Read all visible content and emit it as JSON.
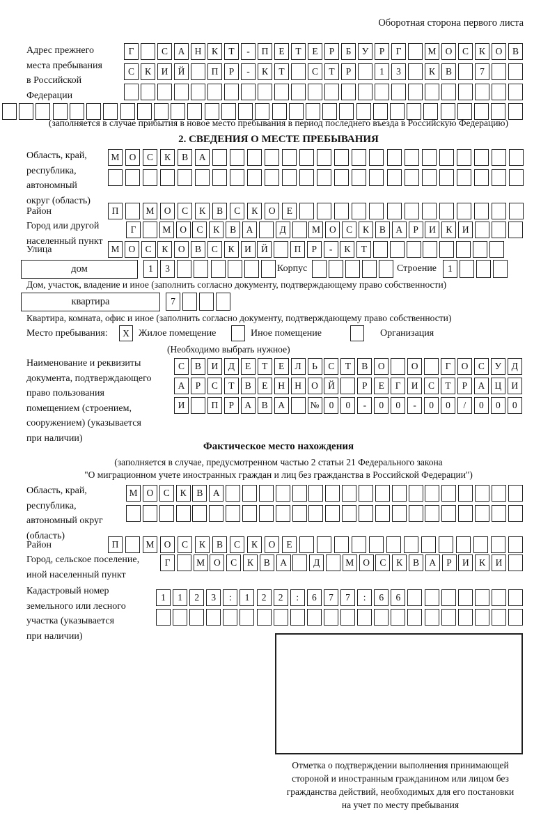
{
  "page": {
    "back_note": "Оборотная сторона первого листа"
  },
  "prev_address": {
    "label_lines": [
      "Адрес прежнего",
      "места пребывания",
      "в Российской",
      "Федерации"
    ],
    "rows": [
      {
        "chars": "Г САНКТ-ПЕТЕРБУРГ МОСКОВ",
        "count": 24
      },
      {
        "chars": "СКИЙ ПР-КТ СТР 13 КВ 7",
        "count": 24
      },
      {
        "chars": "",
        "count": 24
      },
      {
        "chars": "",
        "count": 31
      }
    ],
    "note": "(заполняется в случае прибытия в новое место пребывания в период последнего въезда в Российскую Федерацию)"
  },
  "section2": {
    "title": "2. СВЕДЕНИЯ О МЕСТЕ ПРЕБЫВАНИЯ",
    "region": {
      "label_lines": [
        "Область, край,",
        "республика,",
        "автономный",
        "округ (область)"
      ],
      "rows": [
        {
          "chars": "МОСКВА",
          "count": 24
        },
        {
          "chars": "",
          "count": 24
        }
      ]
    },
    "district": {
      "label": "Район",
      "row": {
        "chars": "П МОСКВСКОЕ",
        "count": 24
      }
    },
    "city": {
      "label_lines": [
        "Город или другой",
        "населенный пункт"
      ],
      "row": {
        "chars": "Г МОСКВА Д МОСКВАРИКИ",
        "count": 24
      }
    },
    "street": {
      "label": "Улица",
      "row": {
        "chars": "МОСКОВСКИЙ ПР-КТ",
        "count": 24
      }
    },
    "house": {
      "box_label": "дом",
      "number": {
        "chars": "13",
        "count": 8
      },
      "korpus_label": "Корпус",
      "korpus": {
        "chars": "",
        "count": 5
      },
      "stroenie_label": "Строение",
      "stroenie": {
        "chars": "1",
        "count": 4
      },
      "note": "Дом, участок, владение и иное (заполнить согласно документу, подтверждающему право собственности)"
    },
    "apartment": {
      "box_label": "квартира",
      "row": {
        "chars": "7",
        "count": 4
      },
      "note": "Квартира, комната, офис и иное (заполнить согласно документу, подтверждающему право собственности)"
    },
    "stay_type": {
      "label": "Место пребывания:",
      "checked_mark": "X",
      "options": [
        "Жилое помещение",
        "Иное помещение",
        "Организация"
      ],
      "note": "(Необходимо выбрать нужное)"
    },
    "document": {
      "label_lines": [
        "Наименование и реквизиты",
        "документа, подтверждающего",
        "право пользования",
        "помещением (строением,",
        "сооружением) (указывается",
        "при наличии)"
      ],
      "rows": [
        {
          "chars": "СВИДЕТЕЛЬСТВО О ГОСУД",
          "count": 21
        },
        {
          "chars": "АРСТВЕННОЙ РЕГИСТРАЦИ",
          "count": 21
        },
        {
          "chars": "И ПРАВА №00-00-00/000",
          "count": 21
        }
      ]
    }
  },
  "actual_location": {
    "title": "Фактическое место нахождения",
    "note_lines": [
      "(заполняется в случае, предусмотренном частью 2 статьи 21 Федерального закона",
      "\"О миграционном учете иностранных граждан и лиц без гражданства в Российской Федерации\")"
    ],
    "region": {
      "label_lines": [
        "Область, край,",
        "республика,",
        "автономный округ",
        "(область)"
      ],
      "rows": [
        {
          "chars": "МОСКВА",
          "count": 24
        },
        {
          "chars": "",
          "count": 24
        }
      ]
    },
    "district": {
      "label": "Район",
      "row": {
        "chars": "П МОСКВСКОЕ",
        "count": 24
      }
    },
    "city": {
      "label_lines": [
        "Город, сельское поселение,",
        "иной населенный пункт"
      ],
      "row": {
        "chars": "Г МОСКВА Д МОСКВАРИКИ",
        "count": 22
      }
    },
    "cadastre": {
      "label_lines": [
        "Кадастровый номер",
        "земельного или лесного",
        "участка (указывается",
        "при наличии)"
      ],
      "rows": [
        {
          "chars": "1123:122:677:66",
          "count": 22
        },
        {
          "chars": "",
          "count": 22
        }
      ]
    },
    "stamp_caption_lines": [
      "Отметка о подтверждении выполнения принимающей",
      "стороной и иностранным гражданином или лицом без",
      "гражданства действий, необходимых для его постановки",
      "на учет по месту пребывания"
    ]
  }
}
